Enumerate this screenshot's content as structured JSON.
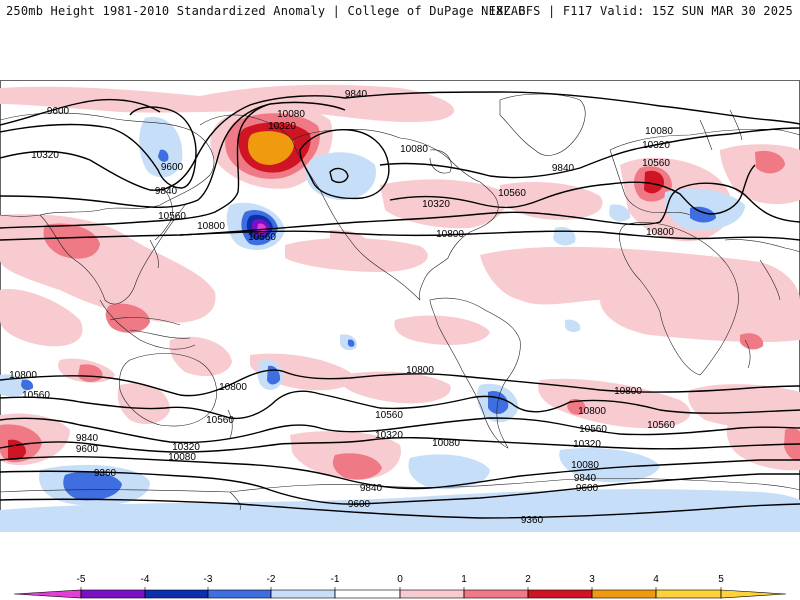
{
  "header": {
    "left": "250mb Height 1981-2010 Standardized Anomaly | College of DuPage NEXLAB",
    "right": "18Z GFS | F117 Valid: 15Z SUN MAR 30 2025"
  },
  "colorbar": {
    "ticks": [
      "-5",
      "-4",
      "-3",
      "-2",
      "-1",
      "0",
      "1",
      "2",
      "3",
      "4",
      "5"
    ],
    "colors": [
      "#e23fd6",
      "#7a10c4",
      "#0c2fb0",
      "#3f6ee0",
      "#c6def8",
      "#ffffff",
      "#f8cbd0",
      "#ef7a86",
      "#cf1524",
      "#f09a10",
      "#ffd23a"
    ]
  },
  "contour_labels": [
    "9600",
    "10320",
    "9840",
    "10560",
    "9600",
    "10080",
    "10320",
    "10800",
    "10560",
    "9840",
    "10080",
    "10320",
    "10560",
    "10800",
    "9840",
    "10080",
    "10320",
    "10560",
    "10800",
    "10800",
    "10560",
    "10800",
    "10560",
    "10800",
    "10800",
    "10560",
    "10560",
    "10320",
    "10080",
    "10320",
    "10080",
    "9840",
    "9600",
    "9360",
    "9840",
    "9600",
    "9360",
    "10800",
    "10560",
    "10320",
    "10080",
    "9840",
    "9600"
  ]
}
